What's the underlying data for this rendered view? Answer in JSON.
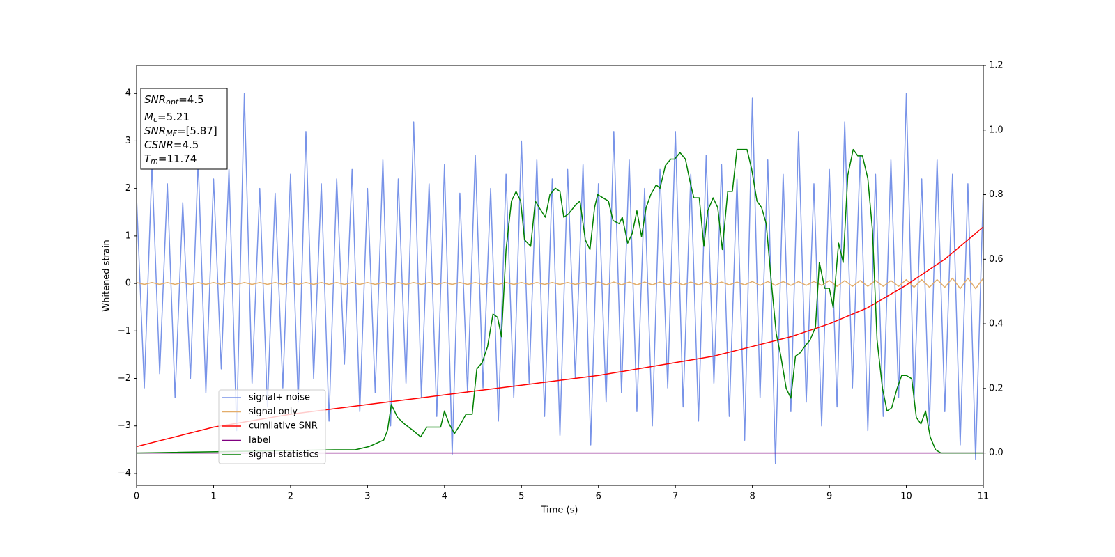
{
  "chart_data": {
    "type": "line",
    "xlabel": "Time (s)",
    "ylabel": "Whitened strain",
    "xlim": [
      0,
      11
    ],
    "ylim": [
      -4.25,
      4.59
    ],
    "y2lim": [
      -0.1,
      1.2
    ],
    "xticks": [
      0,
      1,
      2,
      3,
      4,
      5,
      6,
      7,
      8,
      9,
      10,
      11
    ],
    "yticks": [
      {
        "value": -4,
        "label": "−4"
      },
      {
        "value": -3,
        "label": "−3"
      },
      {
        "value": -2,
        "label": "−2"
      },
      {
        "value": -1,
        "label": "−1"
      },
      0,
      1,
      2,
      3,
      4
    ],
    "y2ticks": [
      {
        "value": 0,
        "label": "0.0"
      },
      {
        "value": 0.2,
        "label": "0.2"
      },
      {
        "value": 0.4,
        "label": "0.4"
      },
      {
        "value": 0.6,
        "label": "0.6"
      },
      {
        "value": 0.8,
        "label": "0.8"
      },
      {
        "value": 1.0,
        "label": "1.0"
      },
      {
        "value": 1.2,
        "label": "1.2"
      }
    ],
    "legend": "lower left",
    "annotation": [
      {
        "main": "SNR",
        "sub": "opt",
        "text": "=4.5"
      },
      {
        "main": "M",
        "sub": "c",
        "text": "=5.21"
      },
      {
        "main": "SNR",
        "sub": "MF",
        "text": "=[5.87]"
      },
      {
        "main": "CSNR",
        "text": "=4.5"
      },
      {
        "main": "T",
        "sub": "m",
        "text": "=11.74"
      }
    ],
    "x": [
      0,
      0.1,
      0.2,
      0.3,
      0.4,
      0.5,
      0.6,
      0.7,
      0.8,
      0.9,
      1,
      1.1,
      1.2,
      1.3,
      1.4,
      1.5,
      1.6,
      1.7,
      1.8,
      1.9,
      2,
      2.1,
      2.2,
      2.3,
      2.4,
      2.5,
      2.6,
      2.7,
      2.8,
      2.9,
      3,
      3.1,
      3.2,
      3.3,
      3.4,
      3.5,
      3.6,
      3.7,
      3.8,
      3.9,
      4,
      4.1,
      4.2,
      4.3,
      4.4,
      4.5,
      4.6,
      4.7,
      4.8,
      4.9,
      5,
      5.1,
      5.2,
      5.3,
      5.4,
      5.5,
      5.6,
      5.7,
      5.8,
      5.9,
      6,
      6.1,
      6.2,
      6.3,
      6.4,
      6.5,
      6.6,
      6.7,
      6.8,
      6.9,
      7,
      7.1,
      7.2,
      7.3,
      7.4,
      7.5,
      7.6,
      7.7,
      7.8,
      7.9,
      8,
      8.1,
      8.2,
      8.3,
      8.4,
      8.5,
      8.6,
      8.7,
      8.8,
      8.9,
      9,
      9.1,
      9.2,
      9.3,
      9.4,
      9.5,
      9.6,
      9.7,
      9.8,
      9.9,
      10,
      10.1,
      10.2,
      10.3,
      10.4,
      10.5,
      10.6,
      10.7,
      10.8,
      10.9,
      11
    ],
    "series": [
      {
        "name": "signal+ noise",
        "color": "#7893e8",
        "axis": "y",
        "values": [
          1.8,
          -2.2,
          2.5,
          -1.9,
          2.1,
          -2.4,
          1.7,
          -2.0,
          2.6,
          -2.3,
          2.2,
          -1.8,
          2.4,
          -3.1,
          4.0,
          -2.1,
          2.0,
          -2.6,
          1.9,
          -2.2,
          2.3,
          -2.5,
          3.2,
          -2.0,
          2.1,
          -2.9,
          2.2,
          -1.7,
          2.4,
          -2.7,
          2.0,
          -2.3,
          2.6,
          -3.0,
          2.2,
          -2.1,
          3.4,
          -2.4,
          2.1,
          -2.8,
          2.5,
          -3.6,
          1.9,
          -2.3,
          2.7,
          -2.2,
          2.0,
          -2.9,
          2.3,
          -2.4,
          3.0,
          -2.1,
          2.6,
          -2.8,
          2.2,
          -3.2,
          2.4,
          -2.0,
          2.5,
          -3.4,
          2.1,
          -2.5,
          3.2,
          -2.3,
          2.6,
          -2.7,
          2.0,
          -3.0,
          2.4,
          -2.2,
          3.2,
          -2.6,
          2.3,
          -2.9,
          2.7,
          -2.1,
          2.5,
          -2.8,
          2.2,
          -3.3,
          3.9,
          -2.4,
          2.6,
          -3.8,
          2.3,
          -2.7,
          3.2,
          -2.5,
          2.1,
          -3.0,
          2.4,
          -2.6,
          3.4,
          -2.2,
          2.7,
          -3.1,
          2.3,
          -2.8,
          2.6,
          -2.4,
          4.0,
          -2.5,
          2.2,
          -3.0,
          2.6,
          -2.7,
          2.3,
          -3.4,
          2.1,
          -3.7,
          2.0
        ]
      },
      {
        "name": "signal only",
        "color": "#e3ad6a",
        "axis": "y",
        "values": [
          0.02,
          -0.02,
          0.02,
          -0.02,
          0.02,
          -0.02,
          0.02,
          -0.02,
          0.02,
          -0.02,
          0.02,
          -0.02,
          0.02,
          -0.02,
          0.02,
          -0.02,
          0.02,
          -0.02,
          0.02,
          -0.02,
          0.02,
          -0.02,
          0.02,
          -0.02,
          0.02,
          -0.02,
          0.02,
          -0.02,
          0.02,
          -0.02,
          0.02,
          -0.02,
          0.02,
          -0.02,
          0.02,
          -0.02,
          0.02,
          -0.02,
          0.02,
          -0.02,
          0.02,
          -0.02,
          0.02,
          -0.02,
          0.02,
          -0.02,
          0.02,
          -0.02,
          0.02,
          -0.02,
          0.02,
          -0.02,
          0.02,
          -0.02,
          0.02,
          -0.02,
          0.02,
          -0.02,
          0.02,
          -0.02,
          0.03,
          -0.03,
          0.03,
          -0.03,
          0.03,
          -0.03,
          0.03,
          -0.03,
          0.03,
          -0.03,
          0.03,
          -0.03,
          0.03,
          -0.03,
          0.03,
          -0.03,
          0.03,
          -0.03,
          0.03,
          -0.03,
          0.04,
          -0.04,
          0.04,
          -0.04,
          0.04,
          -0.04,
          0.04,
          -0.04,
          0.04,
          -0.04,
          0.06,
          -0.06,
          0.06,
          -0.06,
          0.06,
          -0.06,
          0.06,
          -0.06,
          0.06,
          -0.06,
          0.08,
          -0.08,
          0.08,
          -0.08,
          0.08,
          -0.08,
          0.11,
          -0.11,
          0.11,
          -0.11,
          0.11
        ]
      },
      {
        "name": "cumilative SNR",
        "color": "#ff0000",
        "axis": "y2",
        "x": [
          0,
          0.5,
          1,
          1.5,
          2,
          2.5,
          3,
          3.5,
          4,
          4.5,
          5,
          5.5,
          6,
          6.5,
          7,
          7.5,
          8,
          8.5,
          9,
          9.5,
          10,
          10.5,
          11
        ],
        "values": [
          0.02,
          0.05,
          0.08,
          0.1,
          0.12,
          0.135,
          0.15,
          0.165,
          0.18,
          0.195,
          0.21,
          0.225,
          0.24,
          0.26,
          0.28,
          0.3,
          0.33,
          0.36,
          0.4,
          0.45,
          0.52,
          0.6,
          0.7
        ]
      },
      {
        "name": "label",
        "color": "#800080",
        "axis": "y2",
        "x": [
          0,
          11
        ],
        "values": [
          0,
          0
        ]
      },
      {
        "name": "signal statistics",
        "color": "#008000",
        "axis": "y2",
        "x": [
          0,
          2.57,
          2.84,
          3.02,
          3.21,
          3.26,
          3.31,
          3.39,
          3.48,
          3.59,
          3.69,
          3.77,
          3.86,
          3.95,
          4.0,
          4.06,
          4.13,
          4.21,
          4.28,
          4.36,
          4.42,
          4.49,
          4.56,
          4.63,
          4.69,
          4.74,
          4.8,
          4.87,
          4.93,
          4.99,
          5.04,
          5.12,
          5.18,
          5.23,
          5.31,
          5.37,
          5.44,
          5.5,
          5.55,
          5.61,
          5.71,
          5.76,
          5.83,
          5.89,
          5.95,
          5.99,
          6.06,
          6.13,
          6.19,
          6.27,
          6.31,
          6.38,
          6.44,
          6.5,
          6.56,
          6.62,
          6.68,
          6.75,
          6.8,
          6.87,
          6.94,
          6.99,
          7.06,
          7.13,
          7.19,
          7.24,
          7.31,
          7.37,
          7.42,
          7.49,
          7.55,
          7.61,
          7.68,
          7.74,
          7.8,
          7.87,
          7.93,
          7.99,
          8.06,
          8.12,
          8.18,
          8.25,
          8.31,
          8.37,
          8.44,
          8.5,
          8.56,
          8.62,
          8.68,
          8.75,
          8.82,
          8.87,
          8.94,
          9.0,
          9.05,
          9.12,
          9.18,
          9.24,
          9.31,
          9.37,
          9.43,
          9.5,
          9.56,
          9.62,
          9.69,
          9.75,
          9.81,
          9.88,
          9.94,
          10.0,
          10.07,
          10.13,
          10.19,
          10.25,
          10.31,
          10.38,
          10.45,
          10.72,
          11
        ],
        "values": [
          0,
          0.01,
          0.01,
          0.02,
          0.04,
          0.07,
          0.15,
          0.11,
          0.09,
          0.07,
          0.05,
          0.08,
          0.08,
          0.08,
          0.13,
          0.09,
          0.06,
          0.09,
          0.12,
          0.12,
          0.26,
          0.28,
          0.33,
          0.43,
          0.42,
          0.36,
          0.63,
          0.78,
          0.81,
          0.78,
          0.66,
          0.64,
          0.78,
          0.76,
          0.73,
          0.8,
          0.82,
          0.81,
          0.73,
          0.74,
          0.77,
          0.78,
          0.66,
          0.63,
          0.76,
          0.8,
          0.79,
          0.78,
          0.72,
          0.71,
          0.73,
          0.65,
          0.68,
          0.75,
          0.67,
          0.76,
          0.8,
          0.83,
          0.82,
          0.89,
          0.91,
          0.91,
          0.93,
          0.91,
          0.84,
          0.79,
          0.79,
          0.64,
          0.75,
          0.79,
          0.76,
          0.63,
          0.81,
          0.81,
          0.94,
          0.94,
          0.94,
          0.88,
          0.78,
          0.76,
          0.71,
          0.52,
          0.37,
          0.3,
          0.2,
          0.17,
          0.3,
          0.31,
          0.33,
          0.35,
          0.39,
          0.59,
          0.51,
          0.51,
          0.45,
          0.65,
          0.59,
          0.86,
          0.94,
          0.92,
          0.92,
          0.85,
          0.69,
          0.35,
          0.2,
          0.13,
          0.14,
          0.2,
          0.24,
          0.24,
          0.23,
          0.11,
          0.09,
          0.13,
          0.05,
          0.01,
          0,
          0,
          0
        ]
      }
    ]
  }
}
